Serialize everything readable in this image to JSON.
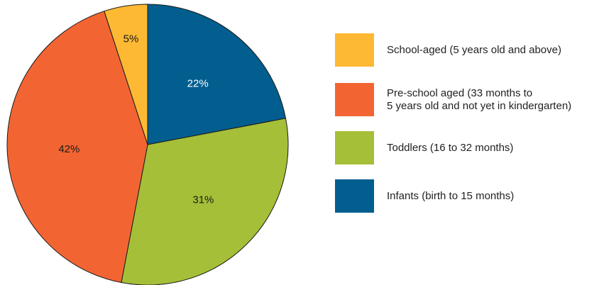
{
  "chart_data": {
    "type": "pie",
    "title": "",
    "slices": [
      {
        "label": "Infants (birth to 15 months)",
        "value": 22,
        "display": "22%",
        "color": "#025e8f",
        "label_color": "#ffffff"
      },
      {
        "label": "Toddlers (16 to 32 months)",
        "value": 31,
        "display": "31%",
        "color": "#a5bf38",
        "label_color": "#1a1a1a"
      },
      {
        "label": "Pre-school aged (33 months to\n5 years old and not yet in kindergarten)",
        "value": 42,
        "display": "42%",
        "color": "#f26533",
        "label_color": "#1a1a1a"
      },
      {
        "label": "School-aged (5 years old and above)",
        "value": 5,
        "display": "5%",
        "color": "#fdb933",
        "label_color": "#1a1a1a"
      }
    ],
    "legend_order": [
      3,
      2,
      1,
      0
    ],
    "legend_position": "right",
    "start_angle": "top",
    "direction": "clockwise"
  }
}
